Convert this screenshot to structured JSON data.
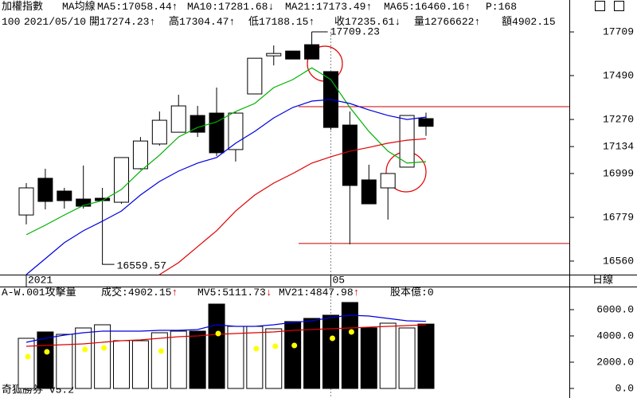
{
  "app_label": "奇狐勝券 v5.2",
  "chart_data": [
    {
      "type": "candlestick",
      "title": "加權指數",
      "subtitle": "MA均線",
      "period": "日線",
      "categories": [
        "2021",
        null,
        null,
        null,
        null,
        null,
        null,
        null,
        null,
        null,
        null,
        null,
        null,
        null,
        null,
        null,
        "05",
        null,
        null,
        null,
        null,
        null
      ],
      "open": [
        16791,
        16975,
        16911,
        16871,
        16875,
        16855,
        17023,
        17147,
        17206,
        17290,
        17302,
        17119,
        17398,
        17589,
        17613,
        17645,
        17510,
        17242,
        16967,
        16927,
        17031,
        17274.23
      ],
      "high": [
        16951,
        17023,
        16927,
        17039,
        16927,
        17079,
        17182,
        17310,
        17394,
        17338,
        17430,
        17306,
        17577,
        17641,
        17613,
        17709.23,
        17510,
        17310,
        17043,
        16999,
        17290,
        17304.47
      ],
      "low": [
        16744,
        16819,
        16823,
        16823,
        16559.57,
        16847,
        17019,
        17139,
        17206,
        17182,
        17087,
        17059,
        17398,
        17541,
        17573,
        17573,
        17218,
        16644,
        16847,
        16768,
        17031,
        17188.15
      ],
      "close": [
        16927,
        16859,
        16863,
        16835,
        16863,
        17079,
        17162,
        17266,
        17338,
        17206,
        17103,
        17302,
        17577,
        17601,
        17573,
        17573,
        17230,
        16939,
        16847,
        16999,
        17290,
        17235.61
      ],
      "up_color": "#ffffff",
      "down_color": "#000000",
      "ylim": [
        16492,
        17869
      ],
      "yticks": [
        16560,
        16779,
        16999,
        17134,
        17270,
        17490,
        17709
      ],
      "separator": ":",
      "moving_averages": [
        {
          "name": "MA5",
          "color": "#00b000",
          "arrow": "↑",
          "values": [
            16692,
            16740,
            16791,
            16839,
            16863,
            16919,
            17011,
            17091,
            17182,
            17230,
            17258,
            17310,
            17350,
            17430,
            17470,
            17529,
            17470,
            17330,
            17210,
            17111,
            17051,
            17058.44
          ]
        },
        {
          "name": "MA10",
          "color": "#0000e0",
          "arrow": "↓",
          "values": [
            16492,
            16572,
            16652,
            16712,
            16760,
            16811,
            16891,
            16959,
            17011,
            17051,
            17079,
            17151,
            17210,
            17278,
            17330,
            17362,
            17370,
            17350,
            17318,
            17290,
            17270,
            17281.68
          ]
        },
        {
          "name": "MA21",
          "color": "#e00000",
          "arrow": "↑",
          "values": [
            null,
            null,
            null,
            null,
            null,
            null,
            null,
            16492,
            16552,
            16632,
            16712,
            16811,
            16891,
            16951,
            16999,
            17051,
            17083,
            17111,
            17130,
            17151,
            17166,
            17173.49
          ]
        },
        {
          "name": "MA65",
          "color": "#e000e0",
          "arrow": "↑",
          "value": 16460.16
        }
      ],
      "header_extra": "P:168",
      "info": {
        "prefix": "100",
        "date": "2021/05/10",
        "fields": [
          {
            "label": "開",
            "arrow": "↑"
          },
          {
            "label": "高",
            "arrow": "↑"
          },
          {
            "label": "低",
            "arrow": "↑"
          },
          {
            "label": "收",
            "arrow": "↓"
          }
        ],
        "volume_label": "量",
        "volume": 12766622,
        "volume_arrow": "↑",
        "amount_label": "額"
      },
      "reference_lines": {
        "color": "#c00000",
        "values": [
          17334,
          16648
        ]
      }
    },
    {
      "type": "bar",
      "title": "A-W.001攻擊量",
      "ylim": [
        -424,
        7636
      ],
      "yticks": [
        {
          "value": 0,
          "label": "0.0"
        },
        {
          "value": 2000,
          "label": "2000.0"
        },
        {
          "value": 4000,
          "label": "4000.0"
        },
        {
          "value": 6000,
          "label": "6000.0"
        }
      ],
      "series": [
        {
          "name": "成交",
          "type": "bar",
          "color": "#008000",
          "arrow": "↑",
          "values": [
            3818,
            4303,
            4121,
            4606,
            4848,
            3636,
            3636,
            4242,
            4364,
            4364,
            6424,
            4727,
            4727,
            4545,
            5091,
            5333,
            5576,
            6545,
            4606,
            4970,
            4606,
            4902.15
          ],
          "fills": [
            "#ffffff",
            "#000000",
            "#ffffff",
            "#ffffff",
            "#ffffff",
            "#ffffff",
            "#ffffff",
            "#ffffff",
            "#ffffff",
            "#000000",
            "#000000",
            "#ffffff",
            "#ffffff",
            "#ffffff",
            "#000000",
            "#000000",
            "#000000",
            "#000000",
            "#000000",
            "#ffffff",
            "#ffffff",
            "#000000"
          ]
        },
        {
          "name": "MV5",
          "type": "line",
          "color": "#0000e0",
          "arrow": "↓",
          "values": [
            3515,
            3818,
            4061,
            4242,
            4364,
            4364,
            4364,
            4424,
            4424,
            4485,
            4848,
            4727,
            4727,
            4848,
            5030,
            5152,
            5394,
            5576,
            5515,
            5333,
            5152,
            5111.73
          ]
        },
        {
          "name": "MV21",
          "type": "line",
          "color": "#e00000",
          "arrow": "↑",
          "values": [
            3212,
            3273,
            3333,
            3394,
            3515,
            3636,
            3697,
            3818,
            3939,
            4000,
            4121,
            4182,
            4242,
            4303,
            4424,
            4485,
            4545,
            4606,
            4667,
            4727,
            4788,
            4847.98
          ]
        },
        {
          "type": "dots",
          "color": "#ffff00",
          "values": [
            2424,
            2788,
            null,
            2970,
            3091,
            null,
            null,
            2848,
            null,
            null,
            4182,
            null,
            3030,
            3212,
            3273,
            null,
            3818,
            4303,
            null,
            null,
            null,
            null
          ]
        }
      ],
      "extra": {
        "name": "股本億",
        "color": "#e000e0",
        "value": 0
      }
    }
  ]
}
